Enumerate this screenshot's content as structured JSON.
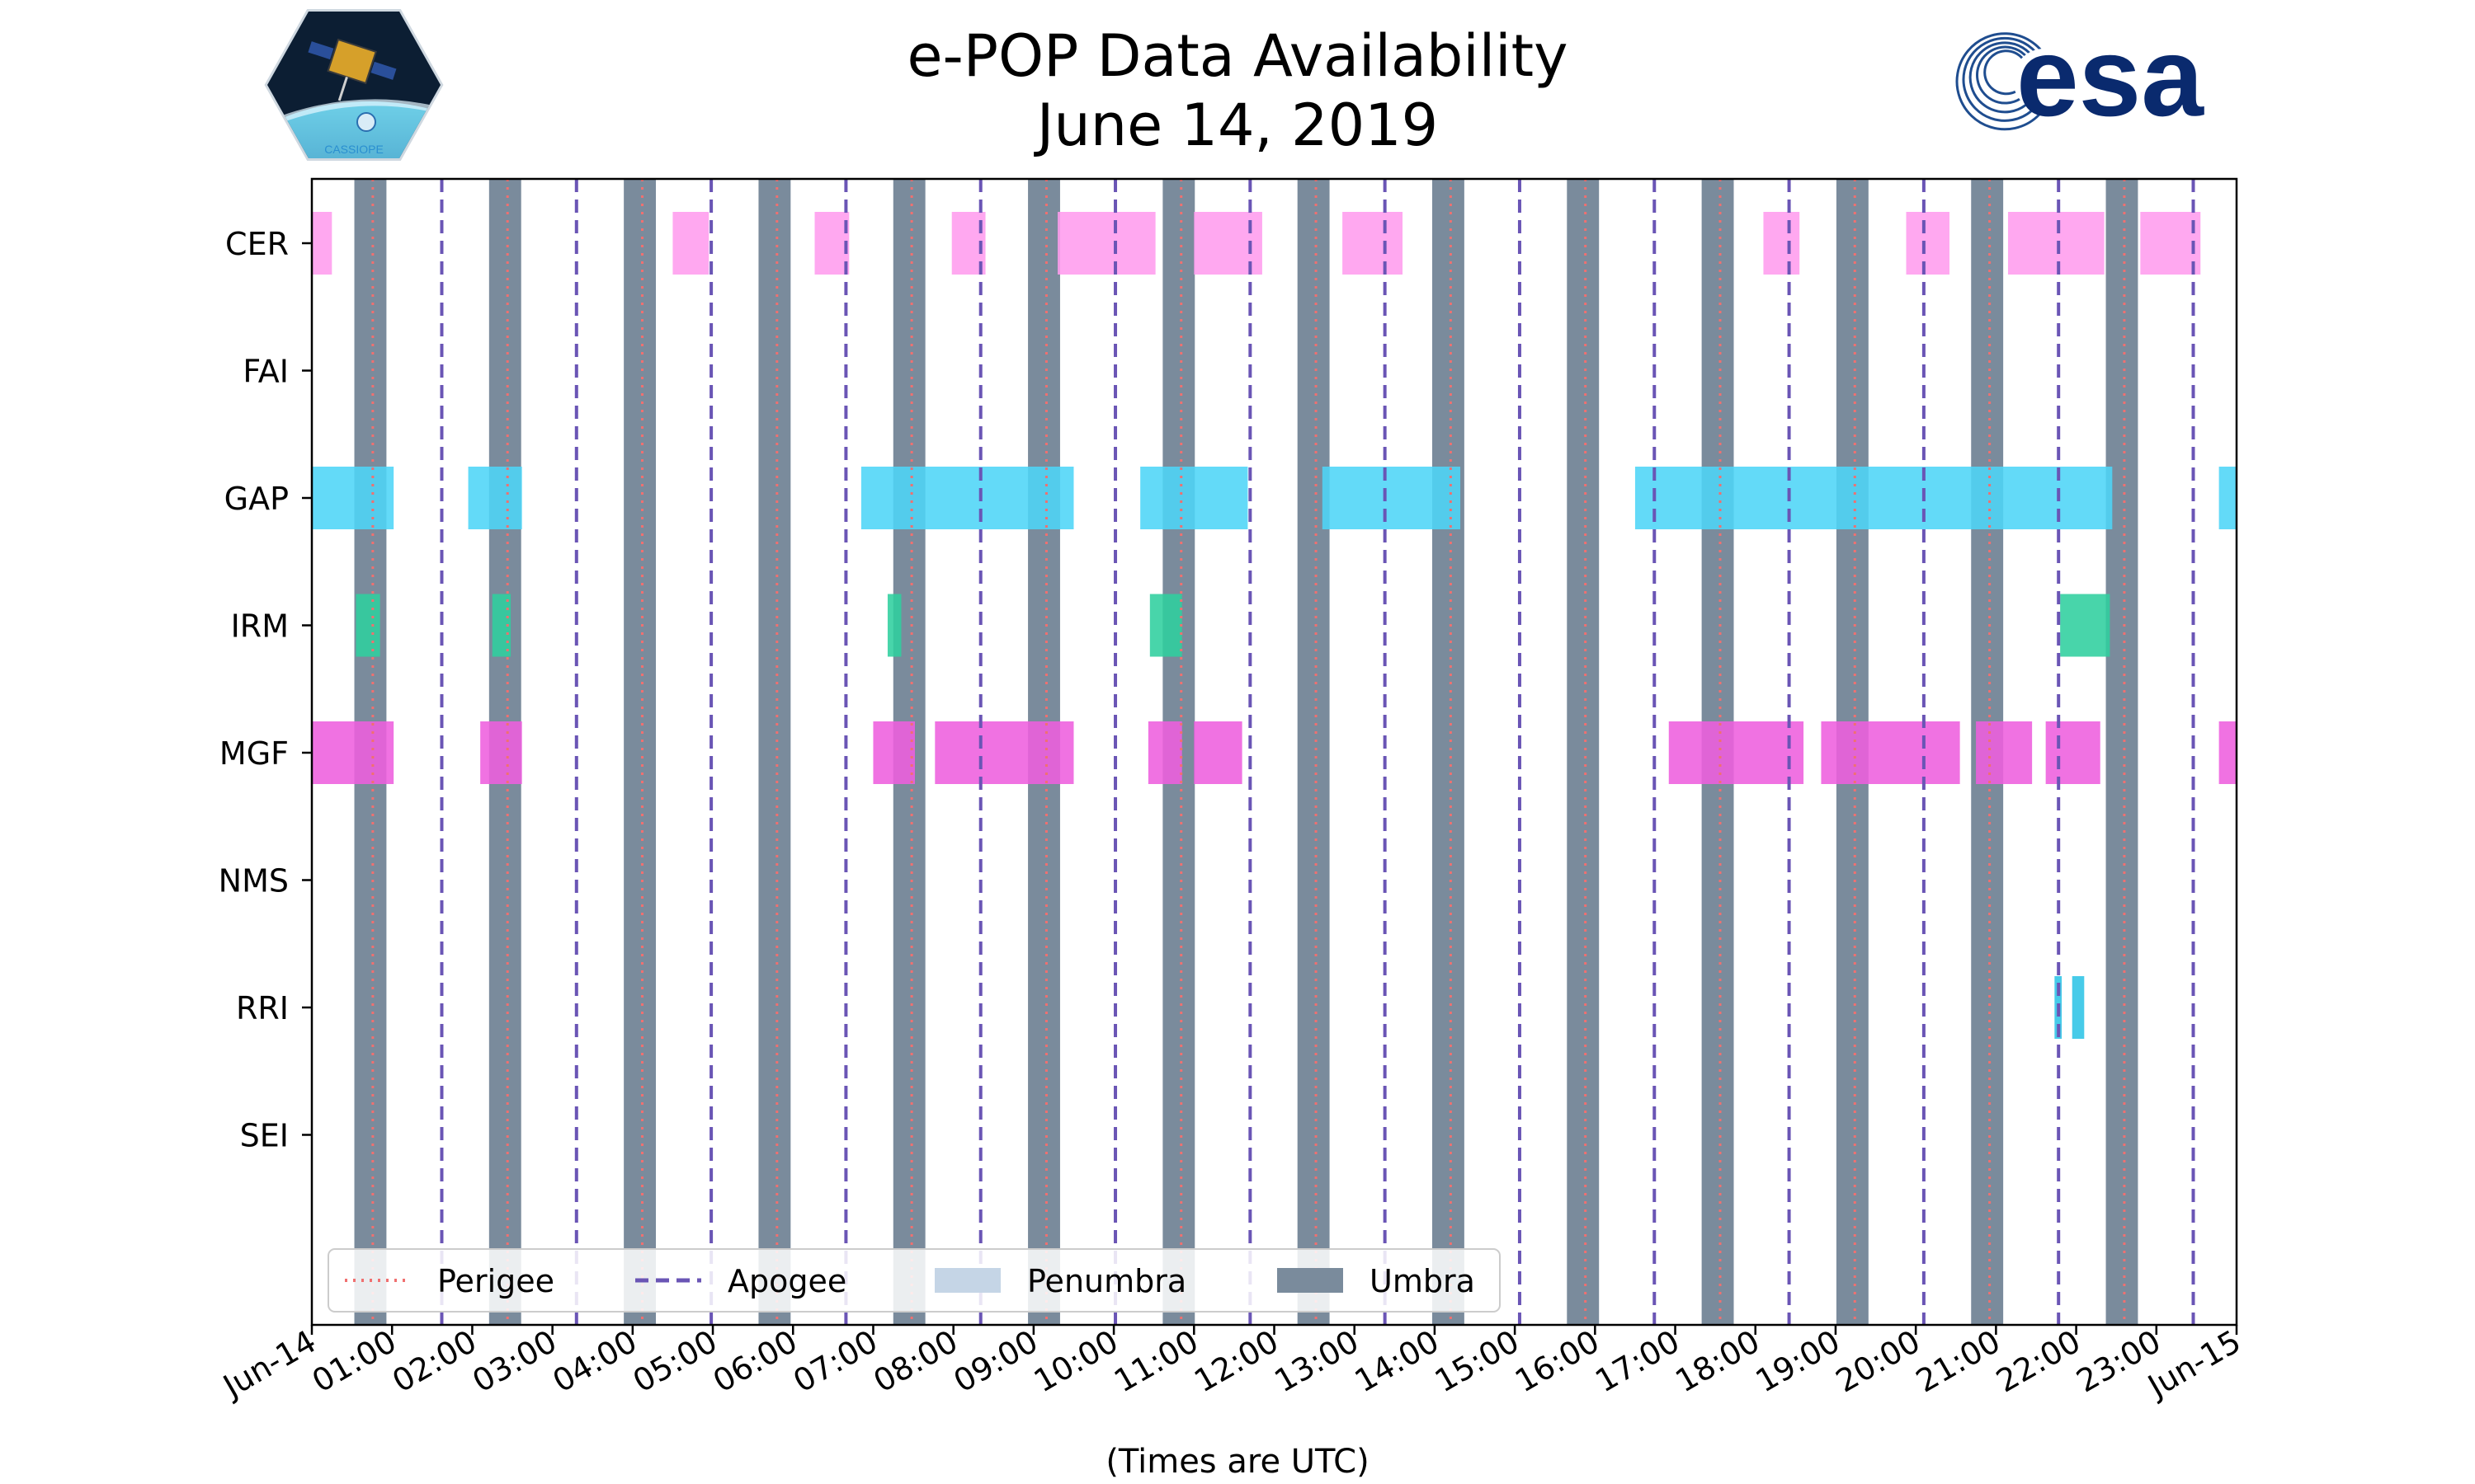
{
  "chart_data": {
    "type": "broken_barh",
    "title_line1": "e-POP Data Availability",
    "title_line2": "June 14, 2019",
    "xlabel": "(Times are UTC)",
    "ylabel": "",
    "xlim": [
      0,
      24
    ],
    "x_unit": "hours since 2019-06-14 00:00 UTC",
    "x_tick_labels": [
      "Jun-14",
      "01:00",
      "02:00",
      "03:00",
      "04:00",
      "05:00",
      "06:00",
      "07:00",
      "08:00",
      "09:00",
      "10:00",
      "11:00",
      "12:00",
      "13:00",
      "14:00",
      "15:00",
      "16:00",
      "17:00",
      "18:00",
      "19:00",
      "20:00",
      "21:00",
      "22:00",
      "23:00",
      "Jun-15"
    ],
    "instruments": [
      "CER",
      "FAI",
      "GAP",
      "IRM",
      "MGF",
      "NMS",
      "RRI",
      "SEI"
    ],
    "series": [
      {
        "name": "CER",
        "color": "#ff9cee",
        "intervals": [
          [
            0.0,
            0.25
          ],
          [
            4.5,
            4.95
          ],
          [
            6.27,
            6.7
          ],
          [
            7.98,
            8.4
          ],
          [
            9.3,
            10.52
          ],
          [
            11.0,
            11.85
          ],
          [
            12.85,
            13.6
          ],
          [
            18.1,
            18.55
          ],
          [
            19.88,
            20.42
          ],
          [
            21.15,
            22.35
          ],
          [
            22.8,
            23.55
          ]
        ]
      },
      {
        "name": "FAI",
        "color": "#7fdbff",
        "intervals": []
      },
      {
        "name": "GAP",
        "color": "#4dd5f7",
        "intervals": [
          [
            0.0,
            1.02
          ],
          [
            1.95,
            2.62
          ],
          [
            6.85,
            9.5
          ],
          [
            10.33,
            11.67
          ],
          [
            12.6,
            14.32
          ],
          [
            16.5,
            22.45
          ],
          [
            23.78,
            24.0
          ]
        ]
      },
      {
        "name": "IRM",
        "color": "#2fcf9e",
        "intervals": [
          [
            0.55,
            0.85
          ],
          [
            2.25,
            2.48
          ],
          [
            7.18,
            7.35
          ],
          [
            10.45,
            10.85
          ],
          [
            21.8,
            22.42
          ]
        ]
      },
      {
        "name": "MGF",
        "color": "#ee5fde",
        "intervals": [
          [
            0.0,
            1.02
          ],
          [
            2.1,
            2.62
          ],
          [
            7.0,
            7.52
          ],
          [
            7.77,
            9.5
          ],
          [
            10.43,
            10.85
          ],
          [
            11.0,
            11.6
          ],
          [
            16.92,
            18.6
          ],
          [
            18.82,
            20.55
          ],
          [
            20.75,
            21.45
          ],
          [
            21.62,
            22.3
          ],
          [
            23.78,
            24.0
          ]
        ]
      },
      {
        "name": "NMS",
        "color": "#cccccc",
        "intervals": []
      },
      {
        "name": "RRI",
        "color": "#2ec4e6",
        "intervals": [
          [
            21.73,
            21.82
          ],
          [
            21.95,
            22.1
          ]
        ]
      },
      {
        "name": "SEI",
        "color": "#cccccc",
        "intervals": []
      }
    ],
    "umbra": {
      "label": "Umbra",
      "color": "#7a8b9c",
      "intervals": [
        [
          0.53,
          0.93
        ],
        [
          2.21,
          2.61
        ],
        [
          3.89,
          4.29
        ],
        [
          5.57,
          5.97
        ],
        [
          7.25,
          7.65
        ],
        [
          8.93,
          9.33
        ],
        [
          10.61,
          11.01
        ],
        [
          12.29,
          12.69
        ],
        [
          13.97,
          14.37
        ],
        [
          15.65,
          16.05
        ],
        [
          17.33,
          17.73
        ],
        [
          19.01,
          19.41
        ],
        [
          20.69,
          21.09
        ],
        [
          22.37,
          22.77
        ]
      ]
    },
    "penumbra": {
      "label": "Penumbra",
      "color": "#c5d5e6"
    },
    "perigee": {
      "label": "Perigee",
      "color": "#f07070",
      "times": [
        0.76,
        2.44,
        4.12,
        5.8,
        7.48,
        9.16,
        10.84,
        12.52,
        14.2,
        15.88,
        17.56,
        19.24,
        20.92,
        22.6
      ]
    },
    "apogee": {
      "label": "Apogee",
      "color": "#6a55b5",
      "times": [
        1.62,
        3.3,
        4.98,
        6.66,
        8.34,
        10.02,
        11.7,
        13.38,
        15.06,
        16.74,
        18.42,
        20.1,
        21.78,
        23.46
      ]
    },
    "legend": {
      "placement": "lower-left",
      "entries": [
        "Perigee",
        "Apogee",
        "Penumbra",
        "Umbra"
      ]
    },
    "grid": false
  },
  "logos": {
    "left": {
      "name": "cassiope-logo",
      "text": "CASSIOPE"
    },
    "right": {
      "name": "esa-logo",
      "text": "esa"
    }
  }
}
